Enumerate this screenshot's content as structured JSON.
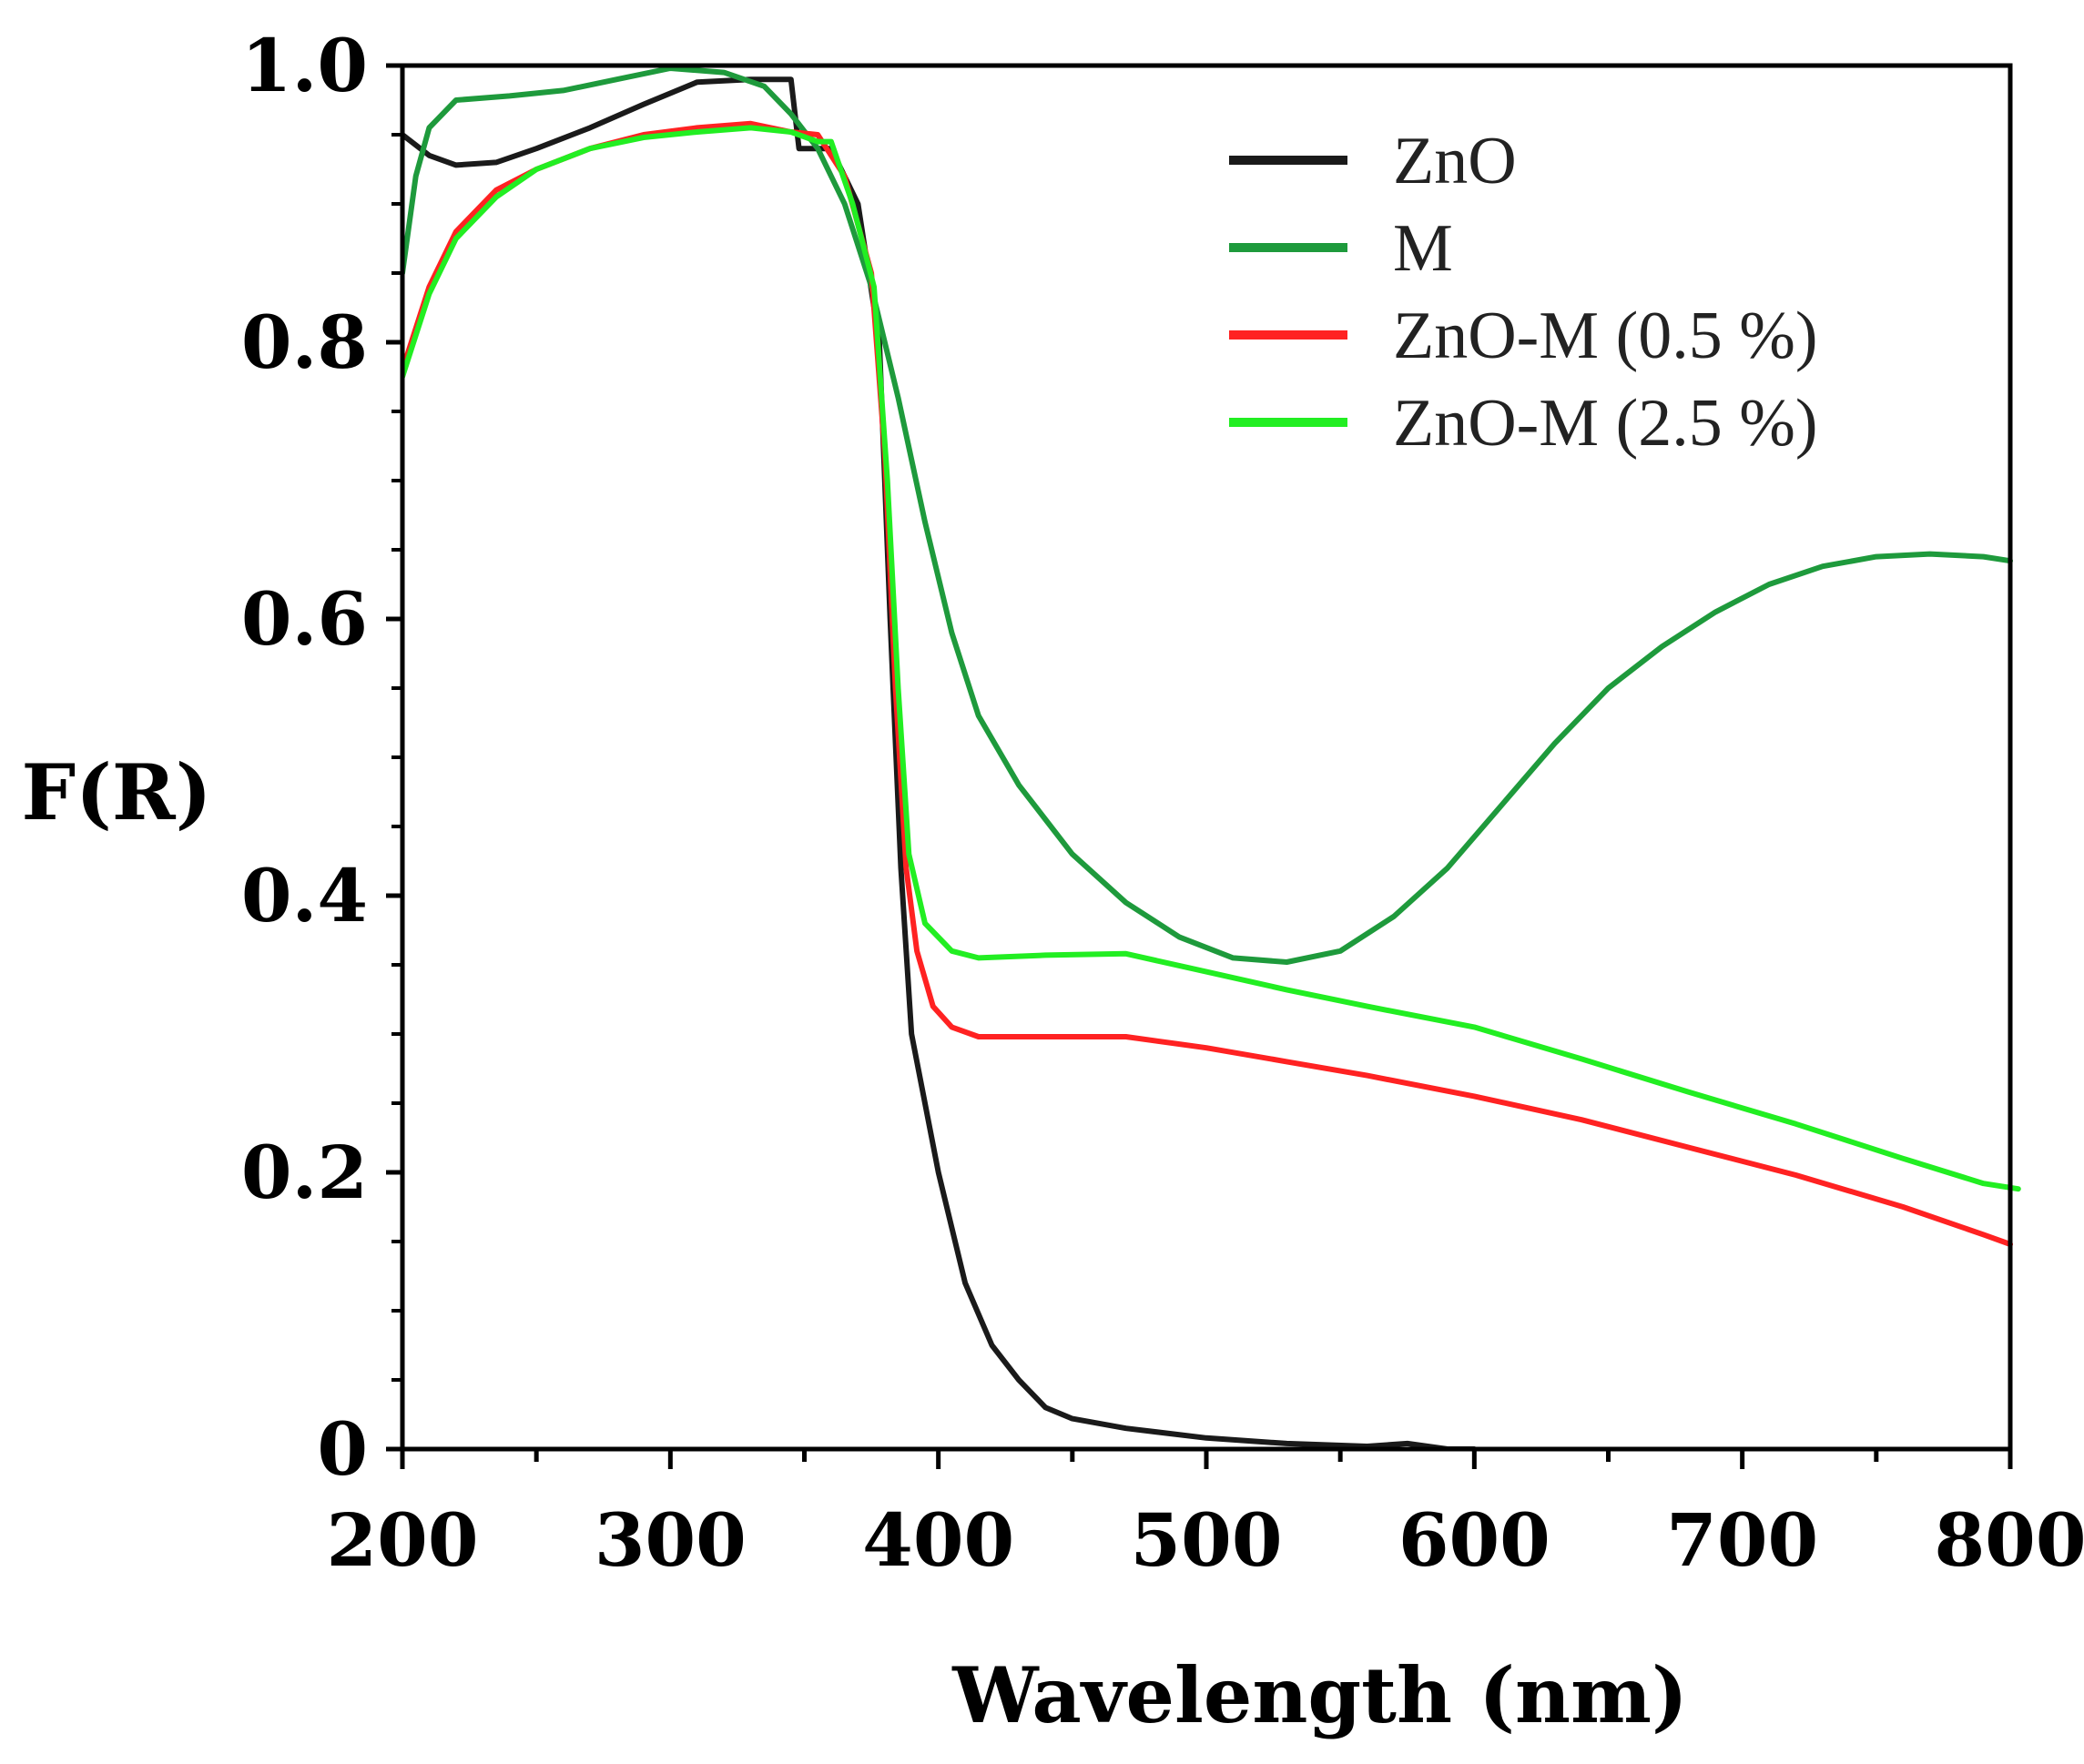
{
  "chart_data": {
    "type": "line",
    "title": "",
    "xlabel": "Wavelength (nm)",
    "ylabel": "F(R)",
    "xlim": [
      200,
      800
    ],
    "ylim": [
      0,
      1.0
    ],
    "xticks": [
      200,
      300,
      400,
      500,
      600,
      700,
      800
    ],
    "xtick_labels": [
      "200",
      "300",
      "400",
      "500",
      "600",
      "700",
      "800"
    ],
    "yticks": [
      0,
      0.2,
      0.4,
      0.6,
      0.8,
      1.0
    ],
    "ytick_labels": [
      "0",
      "0.2",
      "0.4",
      "0.6",
      "0.8",
      "1.0"
    ],
    "grid": false,
    "legend_position": "top-right",
    "series": [
      {
        "name": "ZnO",
        "color": "#1a1a1a",
        "points": [
          [
            200,
            0.95
          ],
          [
            210,
            0.935
          ],
          [
            220,
            0.928
          ],
          [
            235,
            0.93
          ],
          [
            250,
            0.94
          ],
          [
            270,
            0.955
          ],
          [
            290,
            0.972
          ],
          [
            310,
            0.988
          ],
          [
            330,
            0.99
          ],
          [
            345,
            0.99
          ],
          [
            348,
            0.94
          ],
          [
            360,
            0.94
          ],
          [
            370,
            0.9
          ],
          [
            378,
            0.8
          ],
          [
            382,
            0.6
          ],
          [
            386,
            0.42
          ],
          [
            390,
            0.3
          ],
          [
            400,
            0.2
          ],
          [
            410,
            0.12
          ],
          [
            420,
            0.075
          ],
          [
            430,
            0.05
          ],
          [
            440,
            0.03
          ],
          [
            450,
            0.022
          ],
          [
            470,
            0.015
          ],
          [
            500,
            0.008
          ],
          [
            530,
            0.004
          ],
          [
            560,
            0.002
          ],
          [
            575,
            0.004
          ],
          [
            590,
            0.0
          ],
          [
            600,
            0.0
          ]
        ]
      },
      {
        "name": "M",
        "color": "#1e9a3c",
        "points": [
          [
            200,
            0.85
          ],
          [
            205,
            0.92
          ],
          [
            210,
            0.955
          ],
          [
            220,
            0.975
          ],
          [
            240,
            0.978
          ],
          [
            260,
            0.982
          ],
          [
            280,
            0.99
          ],
          [
            300,
            0.998
          ],
          [
            320,
            0.995
          ],
          [
            335,
            0.985
          ],
          [
            345,
            0.965
          ],
          [
            355,
            0.94
          ],
          [
            365,
            0.9
          ],
          [
            375,
            0.84
          ],
          [
            385,
            0.76
          ],
          [
            395,
            0.67
          ],
          [
            405,
            0.59
          ],
          [
            415,
            0.53
          ],
          [
            430,
            0.48
          ],
          [
            450,
            0.43
          ],
          [
            470,
            0.395
          ],
          [
            490,
            0.37
          ],
          [
            510,
            0.355
          ],
          [
            530,
            0.352
          ],
          [
            550,
            0.36
          ],
          [
            570,
            0.385
          ],
          [
            590,
            0.42
          ],
          [
            610,
            0.465
          ],
          [
            630,
            0.51
          ],
          [
            650,
            0.55
          ],
          [
            670,
            0.58
          ],
          [
            690,
            0.605
          ],
          [
            710,
            0.625
          ],
          [
            730,
            0.638
          ],
          [
            750,
            0.645
          ],
          [
            770,
            0.647
          ],
          [
            790,
            0.645
          ],
          [
            800,
            0.642
          ]
        ]
      },
      {
        "name": "ZnO-M (0.5 %)",
        "color": "#ff2222",
        "points": [
          [
            200,
            0.78
          ],
          [
            210,
            0.84
          ],
          [
            220,
            0.88
          ],
          [
            235,
            0.91
          ],
          [
            250,
            0.925
          ],
          [
            270,
            0.94
          ],
          [
            290,
            0.95
          ],
          [
            310,
            0.955
          ],
          [
            330,
            0.958
          ],
          [
            345,
            0.952
          ],
          [
            355,
            0.95
          ],
          [
            365,
            0.92
          ],
          [
            375,
            0.85
          ],
          [
            380,
            0.72
          ],
          [
            384,
            0.55
          ],
          [
            388,
            0.42
          ],
          [
            392,
            0.36
          ],
          [
            398,
            0.32
          ],
          [
            405,
            0.305
          ],
          [
            415,
            0.298
          ],
          [
            440,
            0.298
          ],
          [
            470,
            0.298
          ],
          [
            500,
            0.29
          ],
          [
            530,
            0.28
          ],
          [
            560,
            0.27
          ],
          [
            600,
            0.255
          ],
          [
            640,
            0.238
          ],
          [
            680,
            0.218
          ],
          [
            720,
            0.198
          ],
          [
            760,
            0.175
          ],
          [
            790,
            0.155
          ],
          [
            800,
            0.148
          ]
        ]
      },
      {
        "name": "ZnO-M (2.5 %)",
        "color": "#22ee22",
        "points": [
          [
            200,
            0.775
          ],
          [
            210,
            0.835
          ],
          [
            220,
            0.875
          ],
          [
            235,
            0.905
          ],
          [
            250,
            0.925
          ],
          [
            270,
            0.94
          ],
          [
            290,
            0.948
          ],
          [
            310,
            0.952
          ],
          [
            330,
            0.955
          ],
          [
            345,
            0.952
          ],
          [
            355,
            0.945
          ],
          [
            360,
            0.945
          ],
          [
            368,
            0.9
          ],
          [
            376,
            0.84
          ],
          [
            381,
            0.7
          ],
          [
            385,
            0.55
          ],
          [
            389,
            0.43
          ],
          [
            395,
            0.38
          ],
          [
            405,
            0.36
          ],
          [
            415,
            0.355
          ],
          [
            440,
            0.357
          ],
          [
            470,
            0.358
          ],
          [
            500,
            0.345
          ],
          [
            530,
            0.332
          ],
          [
            560,
            0.32
          ],
          [
            600,
            0.305
          ],
          [
            640,
            0.282
          ],
          [
            680,
            0.258
          ],
          [
            720,
            0.235
          ],
          [
            760,
            0.21
          ],
          [
            790,
            0.192
          ],
          [
            803,
            0.188
          ]
        ]
      }
    ]
  }
}
